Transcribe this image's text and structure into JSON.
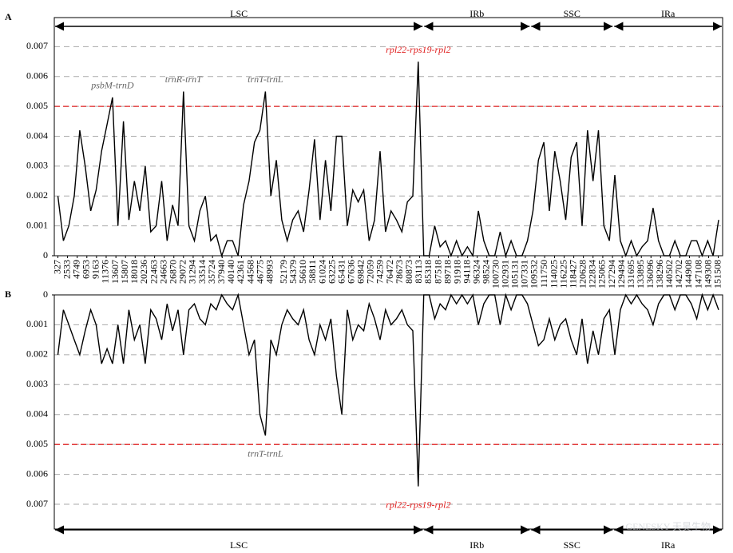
{
  "chart_data": [
    {
      "type": "line",
      "label": "A",
      "inverted": false,
      "xlim": [
        -500,
        152500
      ],
      "xticks": [
        327,
        2533,
        4749,
        6953,
        9163,
        11376,
        13607,
        15807,
        18018,
        20236,
        22463,
        24663,
        26870,
        29072,
        31294,
        33514,
        35724,
        37940,
        40140,
        42361,
        44568,
        46775,
        48993,
        52179,
        54379,
        56610,
        58811,
        61024,
        63225,
        65431,
        67636,
        69842,
        72059,
        74259,
        76472,
        78673,
        80873,
        83113,
        85318,
        87518,
        89718,
        91918,
        94118,
        96324,
        98524,
        100730,
        102931,
        105131,
        107331,
        109532,
        111750,
        114025,
        116225,
        118427,
        120628,
        122834,
        125065,
        127294,
        129494,
        131695,
        133895,
        136096,
        138296,
        140502,
        142702,
        144908,
        147108,
        149308,
        151508
      ],
      "ylim": [
        0,
        0.0076
      ],
      "yticks": [
        0,
        0.001,
        0.002,
        0.003,
        0.004,
        0.005,
        0.006,
        0.007
      ],
      "grid": true,
      "color": "#000000",
      "threshold": {
        "value": 0.005,
        "color": "#e02020"
      },
      "regions": [
        {
          "name": "LSC",
          "start": -500,
          "end": 84000
        },
        {
          "name": "IRb",
          "start": 84000,
          "end": 108500
        },
        {
          "name": "SSC",
          "start": 108500,
          "end": 127500
        },
        {
          "name": "IRa",
          "start": 127500,
          "end": 152500
        }
      ],
      "annotations": [
        {
          "text": "psbM-trnD",
          "x": 12827,
          "y": 0.0053,
          "color": "#666666"
        },
        {
          "text": "trnR-trnT",
          "x": 29077,
          "y": 0.0055,
          "color": "#666666"
        },
        {
          "text": "trnT-trnL",
          "x": 47827,
          "y": 0.0055,
          "color": "#666666"
        },
        {
          "text": "rpl22-rps19-rpl2",
          "x": 82827,
          "y": 0.0065,
          "color": "#e02020"
        }
      ],
      "x": [
        327,
        1577,
        2827,
        4077,
        5327,
        6577,
        7827,
        9077,
        10327,
        11577,
        12827,
        14077,
        15327,
        16577,
        17827,
        19077,
        20327,
        21577,
        22827,
        24077,
        25327,
        26577,
        27827,
        29077,
        30327,
        31577,
        32827,
        34077,
        35327,
        36577,
        37827,
        39077,
        40327,
        41577,
        42827,
        44077,
        45327,
        46577,
        47827,
        49077,
        50327,
        51577,
        52827,
        54077,
        55327,
        56577,
        57827,
        59077,
        60327,
        61577,
        62827,
        64077,
        65327,
        66577,
        67827,
        69077,
        70327,
        71577,
        72827,
        74077,
        75327,
        76577,
        77827,
        79077,
        80327,
        81577,
        82827,
        84077,
        85327,
        86577,
        87827,
        89077,
        90327,
        91577,
        92827,
        94077,
        95327,
        96577,
        97827,
        99077,
        100327,
        101577,
        102827,
        104077,
        105327,
        106577,
        107827,
        109077,
        110327,
        111577,
        112827,
        114077,
        115327,
        116577,
        117827,
        119077,
        120327,
        121577,
        122827,
        124077,
        125327,
        126577,
        127827,
        129077,
        130327,
        131577,
        132827,
        134077,
        135327,
        136577,
        137827,
        139077,
        140327,
        141577,
        142827,
        144077,
        145327,
        146577,
        147827,
        149077,
        150327,
        151577
      ],
      "values": [
        0.002,
        0.0005,
        0.001,
        0.002,
        0.0042,
        0.003,
        0.0015,
        0.0022,
        0.0035,
        0.0044,
        0.0053,
        0.001,
        0.0045,
        0.0012,
        0.0025,
        0.0015,
        0.003,
        0.0008,
        0.001,
        0.0025,
        0.0005,
        0.0017,
        0.001,
        0.0055,
        0.001,
        0.0005,
        0.0015,
        0.002,
        0.0005,
        0.0007,
        0,
        0.0005,
        0.0005,
        0,
        0.0017,
        0.0025,
        0.0038,
        0.0042,
        0.0055,
        0.002,
        0.0032,
        0.0012,
        0.0005,
        0.0012,
        0.0015,
        0.0008,
        0.0022,
        0.0039,
        0.0012,
        0.0032,
        0.0015,
        0.004,
        0.004,
        0.001,
        0.0022,
        0.0018,
        0.0022,
        0.0005,
        0.0012,
        0.0035,
        0.0008,
        0.0015,
        0.0012,
        0.0008,
        0.0018,
        0.002,
        0.0065,
        0,
        0,
        0.001,
        0.0003,
        0.0005,
        0,
        0.0005,
        0,
        0.0003,
        0,
        0.0015,
        0.0005,
        0,
        0,
        0.0008,
        0,
        0.0005,
        0,
        0,
        0.0005,
        0.0015,
        0.0032,
        0.0038,
        0.0015,
        0.0035,
        0.0025,
        0.0012,
        0.0033,
        0.0038,
        0.001,
        0.0042,
        0.0025,
        0.0042,
        0.001,
        0.0005,
        0.0027,
        0.0005,
        0,
        0.0005,
        0,
        0.0003,
        0.0005,
        0.0016,
        0.0005,
        0,
        0,
        0.0005,
        0,
        0,
        0.0005,
        0.0005,
        0,
        0.0005,
        0,
        0.0012
      ]
    },
    {
      "type": "line",
      "label": "B",
      "inverted": true,
      "xlim": [
        -500,
        152500
      ],
      "ylim": [
        0,
        0.0078
      ],
      "yticks": [
        0,
        0.001,
        0.002,
        0.003,
        0.004,
        0.005,
        0.006,
        0.007
      ],
      "grid": true,
      "color": "#000000",
      "threshold": {
        "value": 0.005,
        "color": "#e02020"
      },
      "regions": [
        {
          "name": "LSC",
          "start": -500,
          "end": 84000
        },
        {
          "name": "IRb",
          "start": 84000,
          "end": 108500
        },
        {
          "name": "SSC",
          "start": 108500,
          "end": 127500
        },
        {
          "name": "IRa",
          "start": 127500,
          "end": 152500
        }
      ],
      "annotations": [
        {
          "text": "trnT-trnL",
          "x": 47827,
          "y": 0.0047,
          "color": "#666666"
        },
        {
          "text": "rpl22-rps19-rpl2",
          "x": 82827,
          "y": 0.0064,
          "color": "#e02020"
        }
      ],
      "x": [
        327,
        1577,
        2827,
        4077,
        5327,
        6577,
        7827,
        9077,
        10327,
        11577,
        12827,
        14077,
        15327,
        16577,
        17827,
        19077,
        20327,
        21577,
        22827,
        24077,
        25327,
        26577,
        27827,
        29077,
        30327,
        31577,
        32827,
        34077,
        35327,
        36577,
        37827,
        39077,
        40327,
        41577,
        42827,
        44077,
        45327,
        46577,
        47827,
        49077,
        50327,
        51577,
        52827,
        54077,
        55327,
        56577,
        57827,
        59077,
        60327,
        61577,
        62827,
        64077,
        65327,
        66577,
        67827,
        69077,
        70327,
        71577,
        72827,
        74077,
        75327,
        76577,
        77827,
        79077,
        80327,
        81577,
        82827,
        84077,
        85327,
        86577,
        87827,
        89077,
        90327,
        91577,
        92827,
        94077,
        95327,
        96577,
        97827,
        99077,
        100327,
        101577,
        102827,
        104077,
        105327,
        106577,
        107827,
        109077,
        110327,
        111577,
        112827,
        114077,
        115327,
        116577,
        117827,
        119077,
        120327,
        121577,
        122827,
        124077,
        125327,
        126577,
        127827,
        129077,
        130327,
        131577,
        132827,
        134077,
        135327,
        136577,
        137827,
        139077,
        140327,
        141577,
        142827,
        144077,
        145327,
        146577,
        147827,
        149077,
        150327,
        151577
      ],
      "values": [
        0.002,
        0.0005,
        0.001,
        0.0015,
        0.002,
        0.0012,
        0.0005,
        0.001,
        0.0023,
        0.0018,
        0.0023,
        0.001,
        0.0023,
        0.0005,
        0.0015,
        0.001,
        0.0023,
        0.0005,
        0.0008,
        0.0015,
        0.0003,
        0.0012,
        0.0005,
        0.002,
        0.0005,
        0.0003,
        0.0008,
        0.001,
        0.0003,
        0.0005,
        0,
        0.0003,
        0.0005,
        0,
        0.001,
        0.002,
        0.0015,
        0.004,
        0.0047,
        0.0015,
        0.002,
        0.001,
        0.0005,
        0.0008,
        0.001,
        0.0005,
        0.0015,
        0.002,
        0.001,
        0.0015,
        0.0008,
        0.0027,
        0.004,
        0.0005,
        0.0015,
        0.001,
        0.0012,
        0.0003,
        0.0008,
        0.0015,
        0.0005,
        0.001,
        0.0008,
        0.0005,
        0.001,
        0.0012,
        0.0064,
        0,
        0,
        0.0008,
        0.0003,
        0.0005,
        0,
        0.0003,
        0,
        0.0003,
        0,
        0.001,
        0.0003,
        0,
        0,
        0.001,
        0,
        0.0005,
        0,
        0,
        0.0003,
        0.001,
        0.0017,
        0.0015,
        0.0008,
        0.0015,
        0.001,
        0.0008,
        0.0015,
        0.002,
        0.0008,
        0.0023,
        0.0012,
        0.002,
        0.0008,
        0.0005,
        0.002,
        0.0005,
        0,
        0.0003,
        0,
        0.0003,
        0.0005,
        0.001,
        0.0003,
        0,
        0,
        0.0005,
        0,
        0,
        0.0003,
        0.0008,
        0,
        0.0005,
        0,
        0.0005
      ]
    }
  ],
  "watermark": "GENESKY 天昊生物"
}
